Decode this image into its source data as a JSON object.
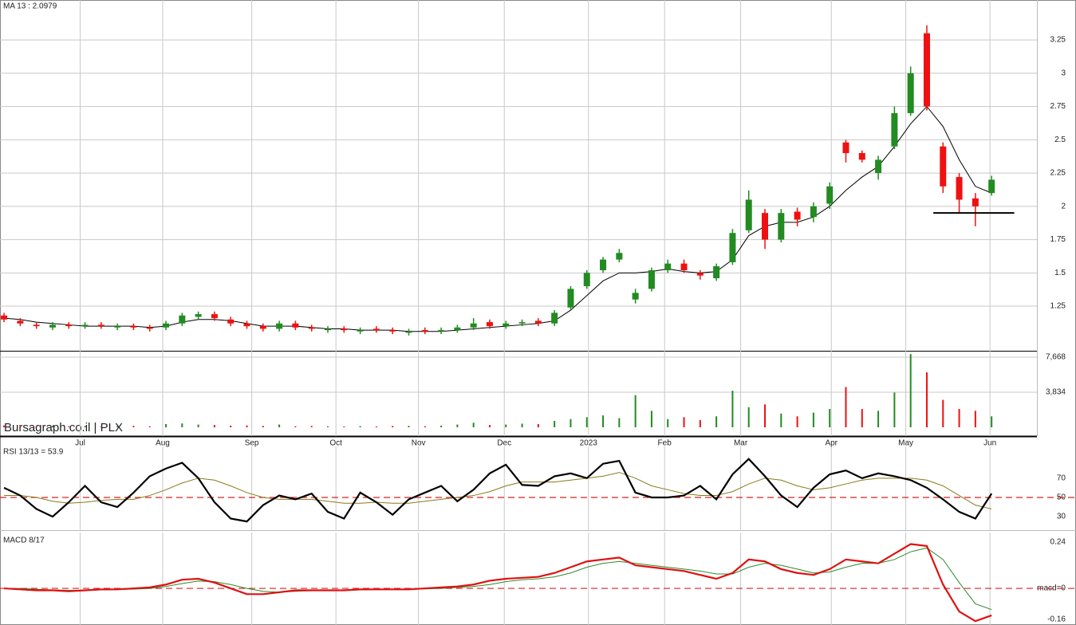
{
  "chart_data": [
    {
      "type": "candlestick",
      "title": "MA 13 : 2.0979",
      "ylim": [
        0.915,
        3.55
      ],
      "yticks": [
        1.25,
        1.5,
        1.75,
        2,
        2.25,
        2.5,
        2.75,
        3,
        3.25
      ],
      "grid": true,
      "up_color": "#228b22",
      "down_color": "#ee1111",
      "open": [
        1.18,
        1.14,
        1.11,
        1.09,
        1.11,
        1.1,
        1.11,
        1.09,
        1.1,
        1.09,
        1.09,
        1.12,
        1.17,
        1.19,
        1.15,
        1.12,
        1.1,
        1.08,
        1.12,
        1.09,
        1.07,
        1.08,
        1.06,
        1.08,
        1.07,
        1.05,
        1.07,
        1.06,
        1.07,
        1.09,
        1.13,
        1.1,
        1.12,
        1.14,
        1.12,
        1.24,
        1.4,
        1.52,
        1.6,
        1.3,
        1.38,
        1.52,
        1.57,
        1.5,
        1.46,
        1.58,
        1.82,
        1.95,
        1.75,
        1.96,
        1.92,
        2.02,
        2.48,
        2.4,
        2.25,
        2.45,
        2.7,
        3.3,
        2.45,
        2.22,
        2.06,
        2.1
      ],
      "high": [
        1.2,
        1.16,
        1.13,
        1.13,
        1.13,
        1.13,
        1.13,
        1.12,
        1.12,
        1.11,
        1.14,
        1.2,
        1.21,
        1.21,
        1.17,
        1.14,
        1.12,
        1.14,
        1.14,
        1.11,
        1.1,
        1.1,
        1.09,
        1.1,
        1.09,
        1.08,
        1.09,
        1.09,
        1.11,
        1.16,
        1.15,
        1.14,
        1.15,
        1.16,
        1.22,
        1.4,
        1.52,
        1.62,
        1.68,
        1.38,
        1.54,
        1.6,
        1.6,
        1.52,
        1.57,
        1.83,
        2.12,
        1.98,
        1.98,
        1.99,
        2.03,
        2.18,
        2.5,
        2.42,
        2.38,
        2.75,
        3.05,
        3.36,
        2.48,
        2.25,
        2.1,
        2.23
      ],
      "low": [
        1.13,
        1.1,
        1.08,
        1.07,
        1.08,
        1.08,
        1.08,
        1.07,
        1.07,
        1.06,
        1.07,
        1.1,
        1.15,
        1.14,
        1.1,
        1.08,
        1.06,
        1.06,
        1.07,
        1.06,
        1.05,
        1.05,
        1.04,
        1.05,
        1.04,
        1.03,
        1.04,
        1.04,
        1.05,
        1.07,
        1.08,
        1.08,
        1.1,
        1.1,
        1.1,
        1.22,
        1.38,
        1.5,
        1.58,
        1.27,
        1.36,
        1.5,
        1.5,
        1.45,
        1.44,
        1.56,
        1.8,
        1.68,
        1.73,
        1.85,
        1.88,
        1.98,
        2.33,
        2.33,
        2.2,
        2.43,
        2.68,
        2.72,
        2.1,
        1.95,
        1.85,
        2.08
      ],
      "close": [
        1.15,
        1.12,
        1.1,
        1.11,
        1.1,
        1.11,
        1.1,
        1.1,
        1.09,
        1.08,
        1.12,
        1.18,
        1.19,
        1.16,
        1.12,
        1.1,
        1.08,
        1.12,
        1.09,
        1.08,
        1.08,
        1.07,
        1.07,
        1.07,
        1.06,
        1.06,
        1.06,
        1.07,
        1.09,
        1.12,
        1.1,
        1.12,
        1.13,
        1.12,
        1.2,
        1.38,
        1.5,
        1.6,
        1.65,
        1.35,
        1.52,
        1.57,
        1.52,
        1.48,
        1.55,
        1.8,
        2.05,
        1.75,
        1.95,
        1.9,
        2.0,
        2.15,
        2.4,
        2.35,
        2.35,
        2.7,
        3.0,
        2.75,
        2.15,
        2.05,
        2.0,
        2.2
      ],
      "ma": {
        "color": "#000000",
        "values": [
          1.16,
          1.15,
          1.13,
          1.12,
          1.11,
          1.1,
          1.1,
          1.1,
          1.1,
          1.09,
          1.1,
          1.13,
          1.15,
          1.15,
          1.14,
          1.12,
          1.1,
          1.1,
          1.1,
          1.09,
          1.08,
          1.08,
          1.07,
          1.07,
          1.07,
          1.06,
          1.06,
          1.06,
          1.07,
          1.08,
          1.09,
          1.1,
          1.11,
          1.12,
          1.14,
          1.22,
          1.33,
          1.44,
          1.5,
          1.5,
          1.51,
          1.53,
          1.51,
          1.5,
          1.51,
          1.6,
          1.78,
          1.85,
          1.88,
          1.88,
          1.92,
          2.0,
          2.12,
          2.22,
          2.3,
          2.45,
          2.62,
          2.75,
          2.6,
          2.35,
          2.15,
          2.1
        ]
      },
      "support_line": {
        "y": 1.95,
        "x": [
          57.4,
          62.4
        ]
      }
    },
    {
      "type": "volume",
      "title": "Bursagraph.co.il | PLX",
      "ylim": [
        0,
        8365
      ],
      "yticks": [
        {
          "value": 3834,
          "label": "3,834"
        },
        {
          "value": 7668,
          "label": "7,668"
        }
      ],
      "grid": true,
      "xlim": [
        -0.25,
        63.8
      ],
      "xticks": [
        {
          "value": 4.7,
          "label": "Jul"
        },
        {
          "value": 9.8,
          "label": "Aug"
        },
        {
          "value": 15.3,
          "label": "Sep"
        },
        {
          "value": 20.5,
          "label": "Oct"
        },
        {
          "value": 25.6,
          "label": "Nov"
        },
        {
          "value": 30.9,
          "label": "Dec"
        },
        {
          "value": 36.1,
          "label": "2023"
        },
        {
          "value": 40.8,
          "label": "Feb"
        },
        {
          "value": 45.5,
          "label": "Mar"
        },
        {
          "value": 51.1,
          "label": "Apr"
        },
        {
          "value": 55.7,
          "label": "May"
        },
        {
          "value": 60.9,
          "label": "Jun"
        }
      ],
      "values": [
        200,
        150,
        120,
        180,
        100,
        140,
        90,
        130,
        160,
        110,
        350,
        420,
        300,
        250,
        180,
        200,
        150,
        300,
        120,
        140,
        110,
        90,
        130,
        100,
        140,
        160,
        120,
        180,
        300,
        500,
        250,
        300,
        400,
        350,
        700,
        900,
        1100,
        1300,
        1000,
        3500,
        1800,
        900,
        1100,
        800,
        1200,
        4000,
        2200,
        2500,
        1500,
        1200,
        1600,
        2000,
        4400,
        2000,
        1800,
        3800,
        8000,
        6000,
        3000,
        2000,
        1800,
        1200
      ]
    },
    {
      "type": "line",
      "title": "RSI 13/13 = 53.9",
      "ylim": [
        16,
        103
      ],
      "yticks": [
        30,
        50,
        70
      ],
      "ref_line": 50,
      "ref_color": "#dd2222",
      "series": [
        {
          "color": "#000000",
          "values": [
            60,
            52,
            38,
            30,
            45,
            62,
            45,
            40,
            55,
            72,
            80,
            86,
            70,
            45,
            28,
            25,
            42,
            52,
            48,
            54,
            35,
            28,
            55,
            45,
            32,
            48,
            55,
            62,
            46,
            58,
            75,
            84,
            63,
            62,
            72,
            75,
            70,
            85,
            88,
            55,
            50,
            50,
            52,
            62,
            48,
            74,
            90,
            72,
            52,
            40,
            60,
            74,
            78,
            70,
            75,
            72,
            68,
            60,
            48,
            35,
            28,
            54
          ]
        },
        {
          "color": "#8a7a1a",
          "values": [
            52,
            52,
            50,
            46,
            44,
            45,
            47,
            48,
            48,
            52,
            58,
            65,
            70,
            68,
            62,
            55,
            50,
            48,
            48,
            48,
            46,
            44,
            44,
            45,
            44,
            44,
            46,
            48,
            50,
            52,
            56,
            62,
            66,
            66,
            66,
            68,
            70,
            72,
            76,
            70,
            62,
            58,
            54,
            52,
            52,
            56,
            64,
            70,
            68,
            62,
            58,
            60,
            64,
            68,
            70,
            70,
            70,
            68,
            62,
            52,
            42,
            38
          ]
        }
      ]
    },
    {
      "type": "line",
      "title": "MACD 8/17",
      "ylim": [
        -0.19,
        0.29
      ],
      "yticks": [
        -0.16,
        {
          "value": 0,
          "label": "macd=0"
        },
        0.24
      ],
      "ref_line": 0,
      "ref_color": "#dd2222",
      "series": [
        {
          "color": "#e01010",
          "values": [
            0.0,
            -0.005,
            -0.01,
            -0.01,
            -0.015,
            -0.01,
            -0.005,
            -0.005,
            0.0,
            0.005,
            0.02,
            0.045,
            0.05,
            0.03,
            0.0,
            -0.03,
            -0.03,
            -0.02,
            -0.01,
            -0.01,
            -0.01,
            -0.01,
            -0.005,
            -0.005,
            -0.005,
            -0.005,
            0.0,
            0.005,
            0.01,
            0.02,
            0.04,
            0.05,
            0.055,
            0.06,
            0.08,
            0.11,
            0.14,
            0.15,
            0.16,
            0.12,
            0.11,
            0.1,
            0.09,
            0.07,
            0.05,
            0.08,
            0.15,
            0.14,
            0.1,
            0.08,
            0.07,
            0.1,
            0.15,
            0.14,
            0.13,
            0.18,
            0.23,
            0.22,
            0.02,
            -0.12,
            -0.17,
            -0.14
          ]
        },
        {
          "color": "#2e8b2e",
          "values": [
            0.0,
            0.0,
            -0.005,
            -0.008,
            -0.01,
            -0.01,
            -0.008,
            -0.006,
            -0.004,
            0.0,
            0.01,
            0.025,
            0.038,
            0.035,
            0.02,
            0.0,
            -0.015,
            -0.02,
            -0.015,
            -0.012,
            -0.01,
            -0.01,
            -0.008,
            -0.006,
            -0.006,
            -0.005,
            -0.002,
            0.0,
            0.005,
            0.01,
            0.02,
            0.035,
            0.045,
            0.05,
            0.06,
            0.08,
            0.11,
            0.13,
            0.14,
            0.13,
            0.12,
            0.11,
            0.1,
            0.09,
            0.075,
            0.075,
            0.11,
            0.13,
            0.12,
            0.1,
            0.08,
            0.085,
            0.11,
            0.13,
            0.13,
            0.15,
            0.19,
            0.21,
            0.15,
            0.03,
            -0.08,
            -0.11
          ]
        }
      ]
    }
  ]
}
